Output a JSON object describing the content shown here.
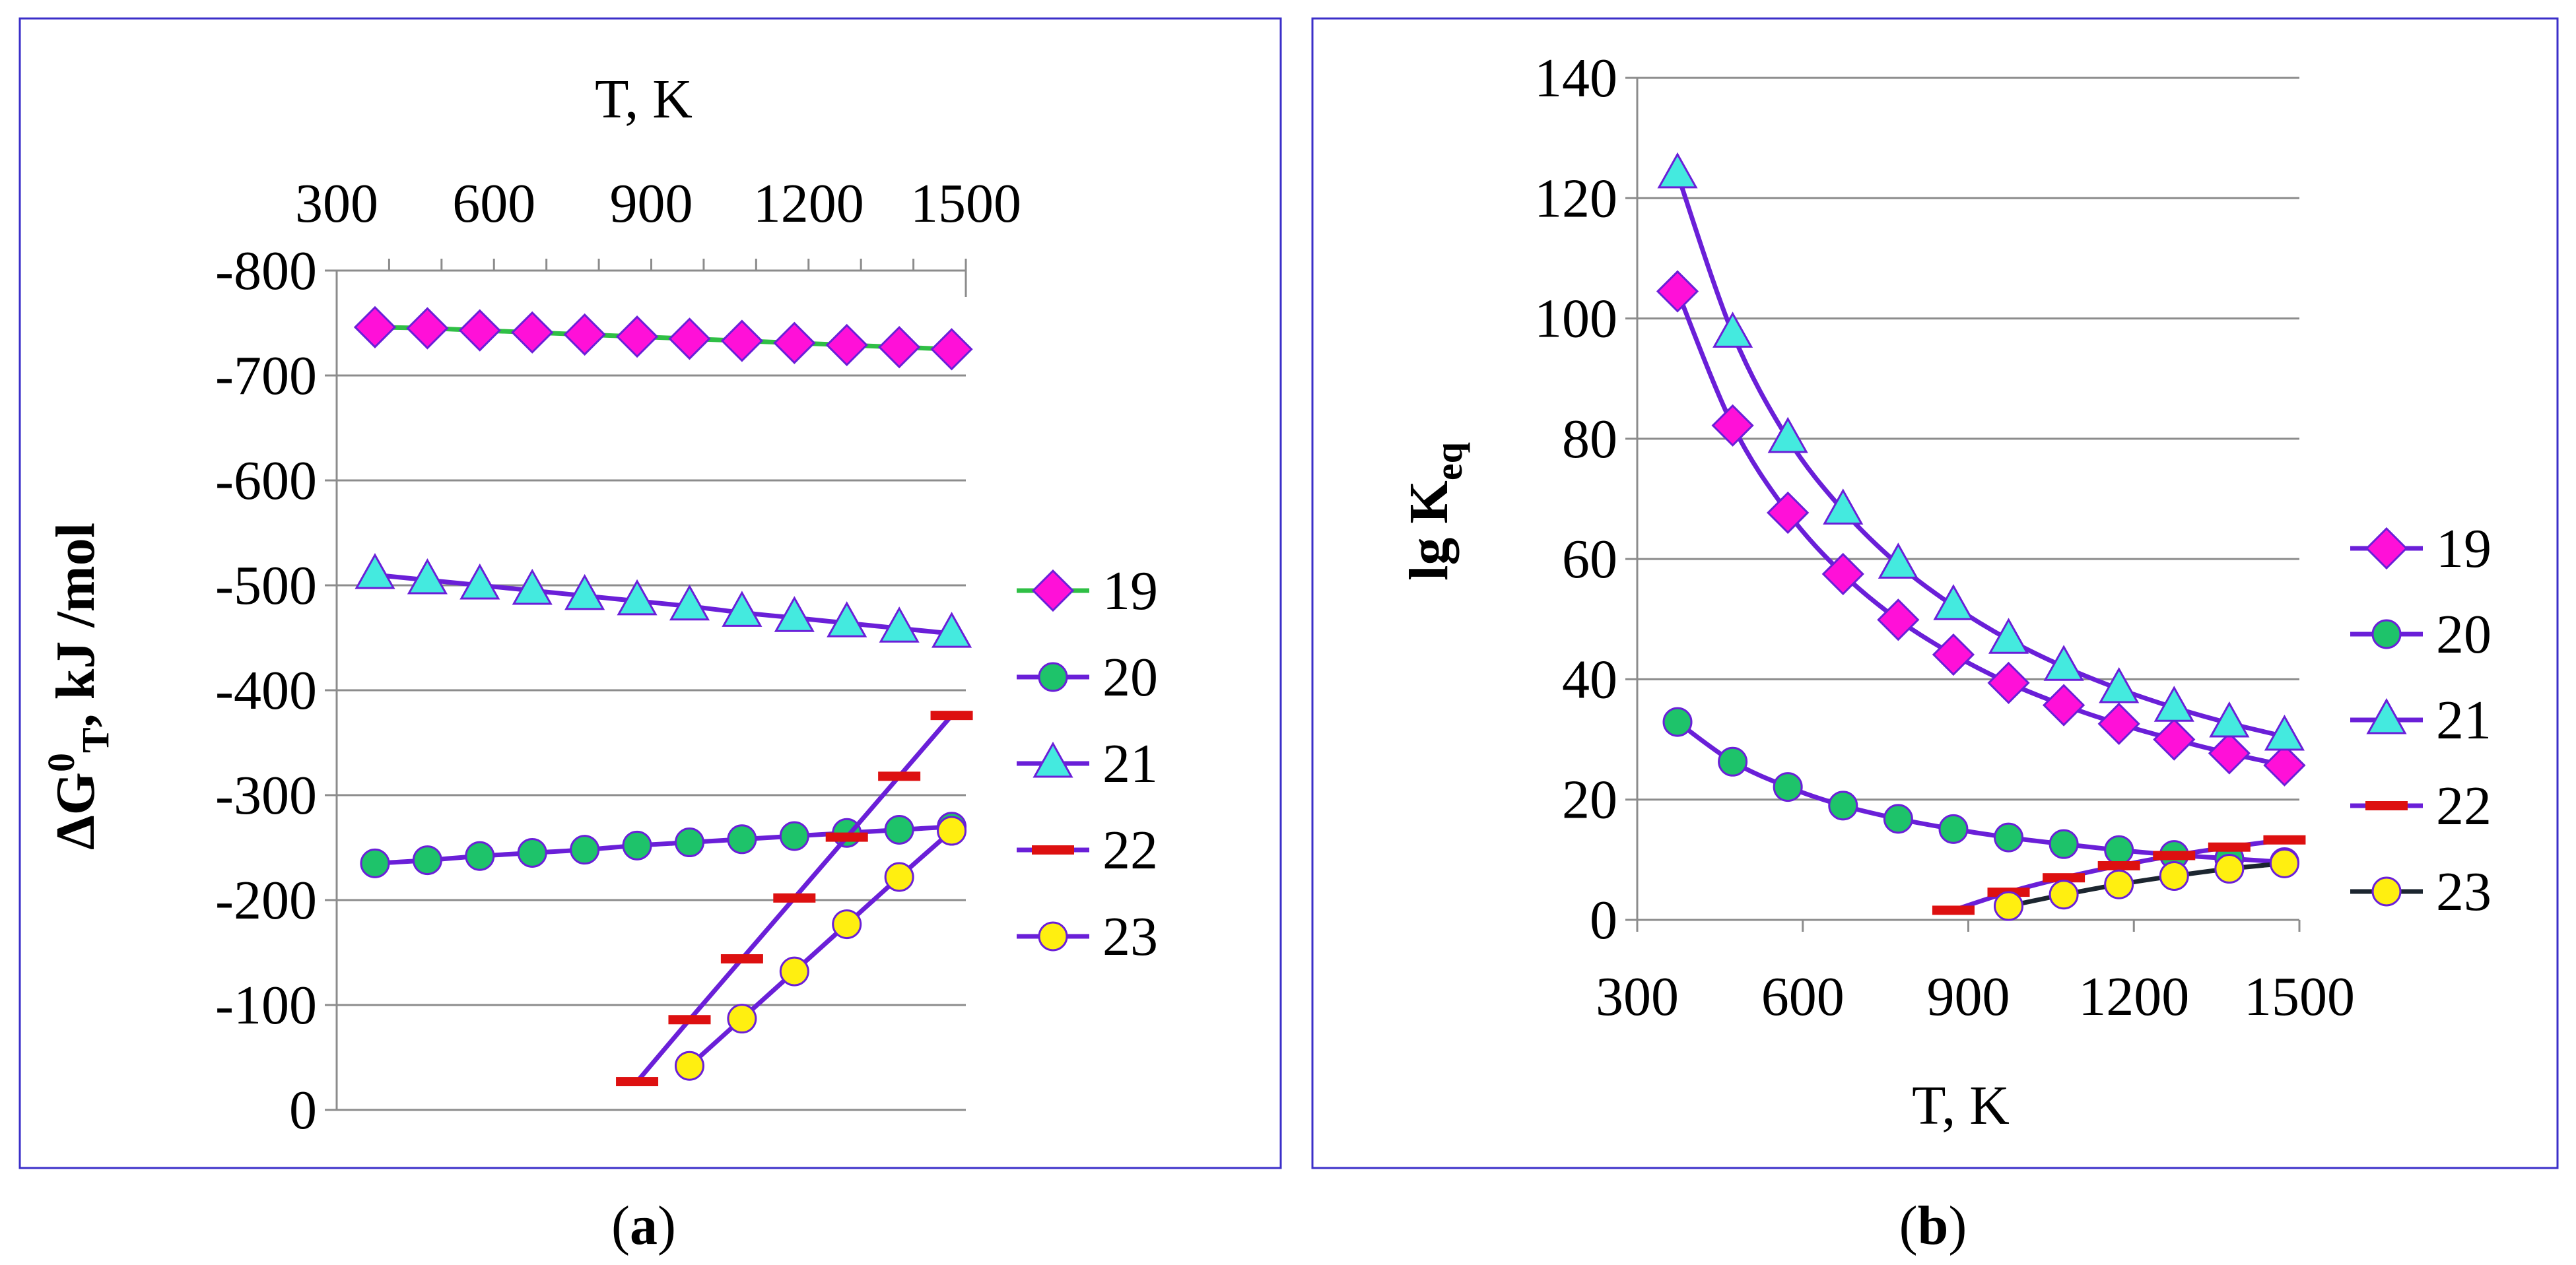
{
  "colors": {
    "frame": "#3b2fc9",
    "line_purple": "#6a1fd8",
    "line_green": "#2fbf45",
    "line_dark": "#1c2630",
    "diamond": "#ff10d8",
    "circle_green": "#1ec36a",
    "triangle": "#44eadf",
    "dash_red": "#dd1010",
    "circle_yellow": "#ffef10"
  },
  "captions": {
    "a": "a",
    "b": "b"
  },
  "chart_data": [
    {
      "type": "line",
      "panel": "a",
      "xlabel": "T, K",
      "ylabel": "ΔG⁰T, kJ /mol",
      "ylabel_main": "ΔG",
      "ylabel_sup": "0",
      "ylabel_sub": "T",
      "ylabel_rest": ", kJ /mol",
      "x_axis_position": "top",
      "xlim": [
        300,
        1500
      ],
      "ylim": [
        -800,
        0
      ],
      "xticks": [
        300,
        600,
        900,
        1200,
        1500
      ],
      "yticks": [
        0,
        -100,
        -200,
        -300,
        -400,
        -500,
        -600,
        -700,
        -800
      ],
      "xtick_labels": [
        "300",
        "600",
        "900",
        "1200",
        "1500"
      ],
      "ytick_labels": [
        "0",
        "-100",
        "-200",
        "-300",
        "-400",
        "-500",
        "-600",
        "-700",
        "-800"
      ],
      "grid": "horizontal",
      "legend_position": "right",
      "series": [
        {
          "name": "19",
          "marker": "diamond",
          "line": "green",
          "x": [
            373,
            473,
            573,
            673,
            773,
            873,
            973,
            1073,
            1173,
            1273,
            1373,
            1473
          ],
          "y": [
            -746,
            -745,
            -743,
            -741,
            -739,
            -737,
            -735,
            -733,
            -731,
            -729,
            -727,
            -725
          ]
        },
        {
          "name": "20",
          "marker": "circle-green",
          "line": "purple",
          "x": [
            373,
            473,
            573,
            673,
            773,
            873,
            973,
            1073,
            1173,
            1273,
            1373,
            1473
          ],
          "y": [
            -235,
            -238,
            -242,
            -245,
            -248,
            -252,
            -255,
            -258,
            -261,
            -264,
            -267,
            -270
          ]
        },
        {
          "name": "21",
          "marker": "triangle",
          "line": "purple",
          "x": [
            373,
            473,
            573,
            673,
            773,
            873,
            973,
            1073,
            1173,
            1273,
            1373,
            1473
          ],
          "y": [
            -510,
            -505,
            -500,
            -495,
            -490,
            -485,
            -480,
            -474,
            -469,
            -464,
            -459,
            -454
          ]
        },
        {
          "name": "22",
          "marker": "dash",
          "line": "purple",
          "x": [
            873,
            973,
            1073,
            1173,
            1273,
            1373,
            1473
          ],
          "y": [
            -27,
            -86,
            -144,
            -202,
            -260,
            -318,
            -376
          ]
        },
        {
          "name": "23",
          "marker": "circle-yellow",
          "line": "purple",
          "x": [
            973,
            1073,
            1173,
            1273,
            1373,
            1473
          ],
          "y": [
            -42,
            -87,
            -132,
            -177,
            -222,
            -266
          ]
        }
      ]
    },
    {
      "type": "line",
      "panel": "b",
      "xlabel": "T, K",
      "ylabel": "lg Keq",
      "ylabel_main": "lg K",
      "ylabel_sub": "eq",
      "x_axis_position": "bottom",
      "xlim": [
        300,
        1500
      ],
      "ylim": [
        0,
        140
      ],
      "xticks": [
        300,
        600,
        900,
        1200,
        1500
      ],
      "yticks": [
        0,
        20,
        40,
        60,
        80,
        100,
        120,
        140
      ],
      "xtick_labels": [
        "300",
        "600",
        "900",
        "1200",
        "1500"
      ],
      "ytick_labels": [
        "0",
        "20",
        "40",
        "60",
        "80",
        "100",
        "120",
        "140"
      ],
      "grid": "horizontal",
      "legend_position": "right",
      "series": [
        {
          "name": "19",
          "marker": "diamond",
          "line": "purple",
          "x": [
            373,
            473,
            573,
            673,
            773,
            873,
            973,
            1073,
            1173,
            1273,
            1373,
            1473
          ],
          "y": [
            104.5,
            82.2,
            67.7,
            57.5,
            49.9,
            44.1,
            39.4,
            35.7,
            32.6,
            30.0,
            27.7,
            25.7
          ]
        },
        {
          "name": "20",
          "marker": "circle-green",
          "line": "purple",
          "x": [
            373,
            473,
            573,
            673,
            773,
            873,
            973,
            1073,
            1173,
            1273,
            1373,
            1473
          ],
          "y": [
            32.9,
            26.3,
            22.1,
            19.0,
            16.8,
            15.1,
            13.7,
            12.6,
            11.6,
            10.8,
            10.2,
            9.6
          ]
        },
        {
          "name": "21",
          "marker": "triangle",
          "line": "purple",
          "x": [
            373,
            473,
            573,
            673,
            773,
            873,
            973,
            1073,
            1173,
            1273,
            1373,
            1473
          ],
          "y": [
            124,
            97.5,
            80.0,
            68.1,
            59.1,
            52.2,
            46.6,
            42.1,
            38.4,
            35.3,
            32.7,
            30.5
          ]
        },
        {
          "name": "22",
          "marker": "dash",
          "line": "purple",
          "x": [
            873,
            973,
            1073,
            1173,
            1273,
            1373,
            1473
          ],
          "y": [
            1.6,
            4.6,
            7.0,
            9.0,
            10.7,
            12.1,
            13.3
          ]
        },
        {
          "name": "23",
          "marker": "circle-yellow",
          "line": "dark",
          "x": [
            973,
            1073,
            1173,
            1273,
            1373,
            1473
          ],
          "y": [
            2.3,
            4.2,
            5.9,
            7.3,
            8.5,
            9.4
          ]
        }
      ]
    }
  ]
}
